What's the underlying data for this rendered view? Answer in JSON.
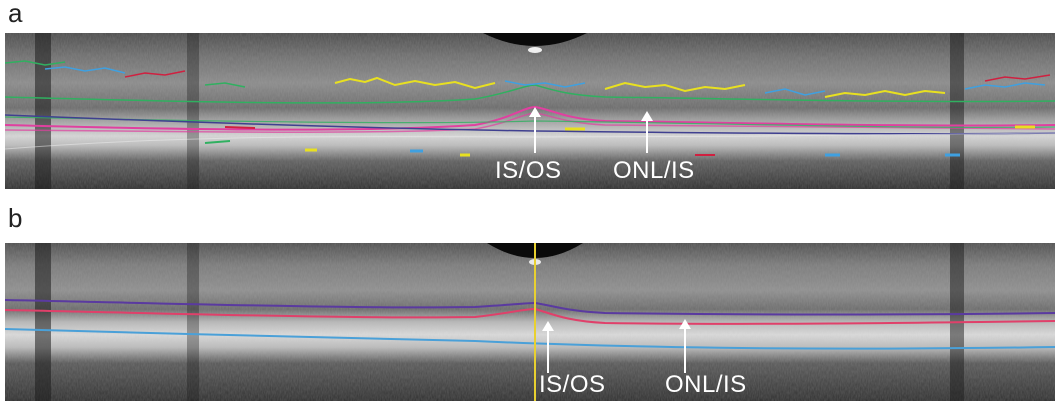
{
  "figure": {
    "panels": [
      {
        "letter": "a",
        "annotations": [
          {
            "id": "is-os",
            "text": "IS/OS"
          },
          {
            "id": "onl-is",
            "text": "ONL/IS"
          }
        ],
        "segmentation_colors": [
          "#e8e020",
          "#3fa0e0",
          "#d02040",
          "#30b060",
          "#e040a0",
          "#404090"
        ]
      },
      {
        "letter": "b",
        "annotations": [
          {
            "id": "is-os",
            "text": "IS/OS"
          },
          {
            "id": "onl-is",
            "text": "ONL/IS"
          }
        ],
        "segmentation_colors": [
          "#5a3aa0",
          "#e0406a",
          "#4aa0d8",
          "#e8d030"
        ]
      }
    ]
  }
}
